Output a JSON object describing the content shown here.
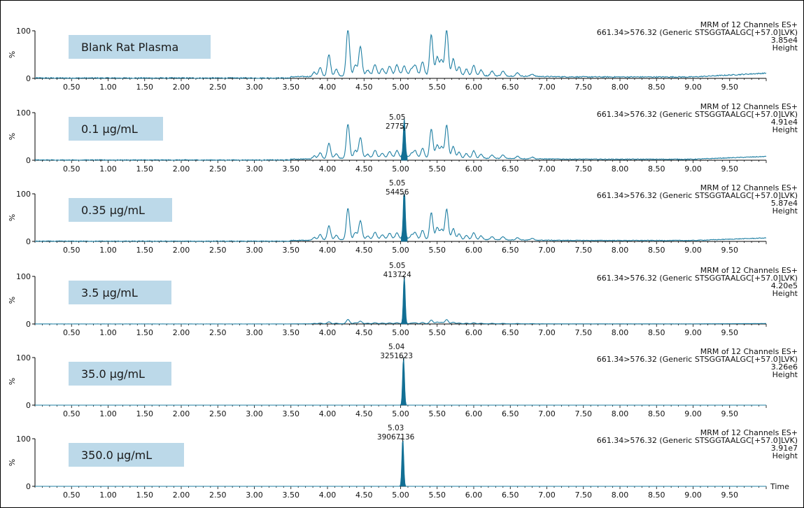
{
  "chart_data": {
    "type": "line",
    "x_axis": {
      "label": "Time",
      "xlim": [
        0,
        10
      ],
      "ticks": [
        "0.50",
        "1.00",
        "1.50",
        "2.00",
        "2.50",
        "3.00",
        "3.50",
        "4.00",
        "4.50",
        "5.00",
        "5.50",
        "6.00",
        "6.50",
        "7.00",
        "7.50",
        "8.00",
        "8.50",
        "9.00",
        "9.50"
      ]
    },
    "y_axis": {
      "label": "%",
      "ylim": [
        0,
        100
      ],
      "ticks": [
        "0",
        "100"
      ]
    },
    "color": "#1f7fa3",
    "fill_color": "#126f94",
    "panels": [
      {
        "sample": "Blank Rat Plasma",
        "header": [
          "MRM of 12 Channels ES+",
          "661.34>576.32 (Generic STSGGTAALGC[+57.0]LVK)",
          "3.85e4",
          "Height"
        ],
        "peak_label": null,
        "noise_scale": 1.0,
        "main_peak": null
      },
      {
        "sample": "0.1 µg/mL",
        "header": [
          "MRM of 12 Channels ES+",
          "661.34>576.32 (Generic STSGGTAALGC[+57.0]LVK)",
          "4.91e4",
          "Height"
        ],
        "peak_label": {
          "rt": "5.05",
          "area": "27757"
        },
        "noise_scale": 0.72,
        "main_peak": {
          "rt": 5.05,
          "height": 68
        }
      },
      {
        "sample": "0.35 µg/mL",
        "header": [
          "MRM of 12 Channels ES+",
          "661.34>576.32 (Generic STSGGTAALGC[+57.0]LVK)",
          "5.87e4",
          "Height"
        ],
        "peak_label": {
          "rt": "5.05",
          "area": "54456"
        },
        "noise_scale": 0.66,
        "main_peak": {
          "rt": 5.05,
          "height": 100
        }
      },
      {
        "sample": "3.5 µg/mL",
        "header": [
          "MRM of 12 Channels ES+",
          "661.34>576.32 (Generic STSGGTAALGC[+57.0]LVK)",
          "4.20e5",
          "Height"
        ],
        "peak_label": {
          "rt": "5.05",
          "area": "413724"
        },
        "noise_scale": 0.09,
        "main_peak": {
          "rt": 5.05,
          "height": 100
        }
      },
      {
        "sample": "35.0 µg/mL",
        "header": [
          "MRM of 12 Channels ES+",
          "661.34>576.32 (Generic STSGGTAALGC[+57.0]LVK)",
          "3.26e6",
          "Height"
        ],
        "peak_label": {
          "rt": "5.04",
          "area": "3251623"
        },
        "noise_scale": 0.0,
        "main_peak": {
          "rt": 5.04,
          "height": 100
        }
      },
      {
        "sample": "350.0 µg/mL",
        "header": [
          "MRM of 12 Channels ES+",
          "661.34>576.32 (Generic STSGGTAALGC[+57.0]LVK)",
          "3.91e7",
          "Height"
        ],
        "peak_label": {
          "rt": "5.03",
          "area": "39067136"
        },
        "noise_scale": 0.0,
        "main_peak": {
          "rt": 5.03,
          "height": 100
        }
      }
    ],
    "interference_peaks": [
      {
        "rt": 3.82,
        "height": 9
      },
      {
        "rt": 3.9,
        "height": 18
      },
      {
        "rt": 4.02,
        "height": 45
      },
      {
        "rt": 4.12,
        "height": 14
      },
      {
        "rt": 4.28,
        "height": 100
      },
      {
        "rt": 4.38,
        "height": 22
      },
      {
        "rt": 4.45,
        "height": 60
      },
      {
        "rt": 4.55,
        "height": 10
      },
      {
        "rt": 4.65,
        "height": 22
      },
      {
        "rt": 4.75,
        "height": 13
      },
      {
        "rt": 4.85,
        "height": 18
      },
      {
        "rt": 4.95,
        "height": 20
      },
      {
        "rt": 5.05,
        "height": 18
      },
      {
        "rt": 5.15,
        "height": 12
      },
      {
        "rt": 5.2,
        "height": 20
      },
      {
        "rt": 5.3,
        "height": 28
      },
      {
        "rt": 5.42,
        "height": 85
      },
      {
        "rt": 5.5,
        "height": 38
      },
      {
        "rt": 5.56,
        "height": 32
      },
      {
        "rt": 5.63,
        "height": 97
      },
      {
        "rt": 5.72,
        "height": 35
      },
      {
        "rt": 5.8,
        "height": 18
      },
      {
        "rt": 5.9,
        "height": 14
      },
      {
        "rt": 6.0,
        "height": 22
      },
      {
        "rt": 6.1,
        "height": 12
      },
      {
        "rt": 6.25,
        "height": 10
      },
      {
        "rt": 6.4,
        "height": 10
      },
      {
        "rt": 6.6,
        "height": 7
      },
      {
        "rt": 6.8,
        "height": 5
      }
    ]
  }
}
